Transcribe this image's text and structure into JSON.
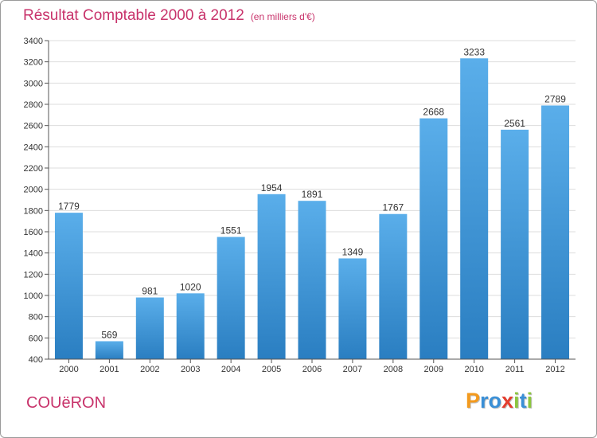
{
  "header": {
    "title": "Résultat Comptable 2000 à 2012",
    "subtitle": "(en milliers d'€)"
  },
  "footer": {
    "town": "COUëRON",
    "logo": "Proxiti",
    "logo_letters": [
      "P",
      "r",
      "o",
      "x",
      "i",
      "t",
      "i"
    ],
    "logo_colors": [
      "#f39a1e",
      "#3a8fd6",
      "#3a8fd6",
      "#e43d2e",
      "#8cc63f",
      "#3a8fd6",
      "#8cc63f"
    ]
  },
  "colors": {
    "accent": "#c8336b",
    "bar_top": "#5aaeea",
    "bar_bottom": "#2a7ec1",
    "grid": "#dddddd",
    "background": "#ffffff"
  },
  "chart_data": {
    "type": "bar",
    "title": "Résultat Comptable 2000 à 2012",
    "subtitle": "(en milliers d'€)",
    "categories": [
      "2000",
      "2001",
      "2002",
      "2003",
      "2004",
      "2005",
      "2006",
      "2007",
      "2008",
      "2009",
      "2010",
      "2011",
      "2012"
    ],
    "values": [
      1779,
      569,
      981,
      1020,
      1551,
      1954,
      1891,
      1349,
      1767,
      2668,
      3233,
      2561,
      2789
    ],
    "ylim": [
      400,
      3400
    ],
    "yticks": [
      400,
      600,
      800,
      1000,
      1200,
      1400,
      1600,
      1800,
      2000,
      2200,
      2400,
      2600,
      2800,
      3000,
      3200,
      3400
    ],
    "xlabel": "",
    "ylabel": "",
    "grid": true,
    "legend": "none"
  }
}
